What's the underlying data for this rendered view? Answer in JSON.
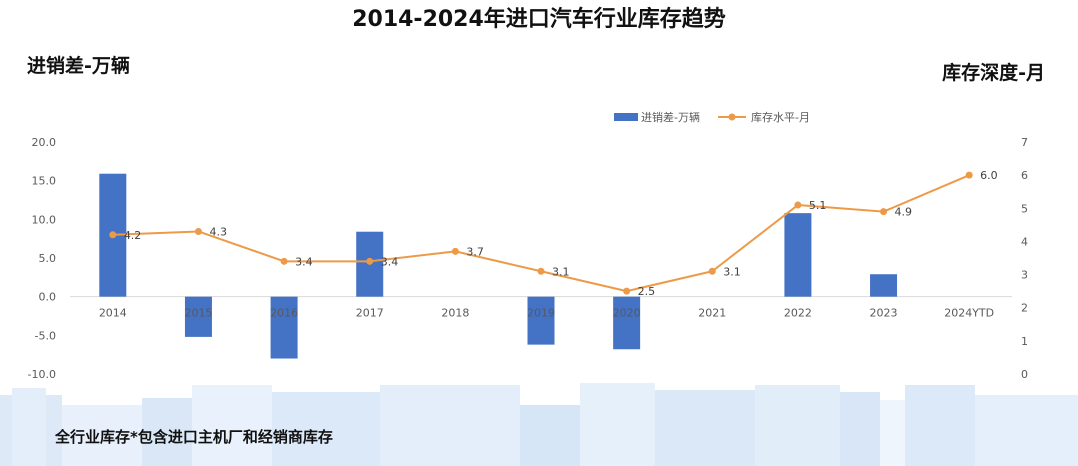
{
  "footnote": "全行业库存*包含进口主机厂和经销商库存",
  "colors": {
    "bar": "#4472c4",
    "line": "#ed9a48",
    "tick_text": "#595959",
    "data_label_text": "#404040",
    "zero_line": "#d9d9d9"
  },
  "chart_data": {
    "type": "bar",
    "title": "2014-2024年进口汽车行业库存趋势",
    "ylabel": "进销差-万辆",
    "y2label": "库存深度-月",
    "categories": [
      "2014",
      "2015",
      "2016",
      "2017",
      "2018",
      "2019",
      "2020",
      "2021",
      "2022",
      "2023",
      "2024YTD"
    ],
    "series": [
      {
        "name": "进销差-万辆",
        "type": "bar",
        "axis": "left",
        "values": [
          15.9,
          -5.2,
          -8.0,
          8.4,
          null,
          -6.2,
          -6.8,
          null,
          10.8,
          2.9,
          null
        ]
      },
      {
        "name": "库存水平-月",
        "type": "line",
        "axis": "right",
        "marker": "circle",
        "data_labels": true,
        "values": [
          4.2,
          4.3,
          3.4,
          3.4,
          3.7,
          3.1,
          2.5,
          3.1,
          5.1,
          4.9,
          6.0
        ]
      }
    ],
    "ylim": [
      -10,
      20
    ],
    "y2lim": [
      0,
      7
    ],
    "yticks": [
      "20.0",
      "15.0",
      "10.0",
      "5.0",
      "0.0",
      "-5.0",
      "-10.0"
    ],
    "y2ticks": [
      "7",
      "6",
      "5",
      "4",
      "3",
      "2",
      "1",
      "0"
    ],
    "legend": "top-center",
    "grid": false
  }
}
